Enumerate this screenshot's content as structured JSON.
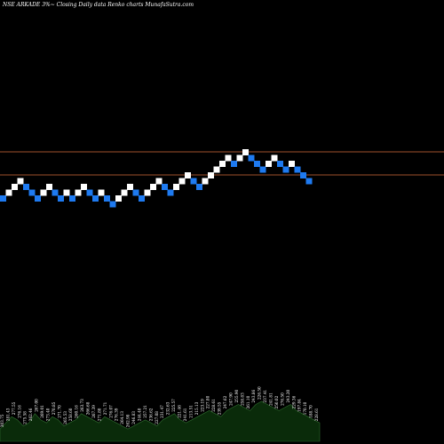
{
  "header": {
    "symbol_text": "NSE ARKADE",
    "pct_text": "3%",
    "arrow_text": "~",
    "description": "Closing Daily data  Renko  charts MunafaSutra.com"
  },
  "colors": {
    "background": "#000000",
    "up_brick": "#ffffff",
    "down_brick": "#1e7af0",
    "support_line": "#a0522d",
    "volume_fill": "#0a2b0a",
    "volume_edge": "#2f6b2f",
    "label_text": "#ffffff"
  },
  "chart_data": {
    "type": "renko",
    "basis": "Closing Daily",
    "levels": [
      {
        "name": "upper",
        "value": 8
      },
      {
        "name": "lower",
        "value": 4
      }
    ],
    "bricks": [
      {
        "dir": "down",
        "level": 0
      },
      {
        "dir": "up",
        "level": 1
      },
      {
        "dir": "up",
        "level": 2
      },
      {
        "dir": "up",
        "level": 3
      },
      {
        "dir": "down",
        "level": 2
      },
      {
        "dir": "down",
        "level": 1
      },
      {
        "dir": "down",
        "level": 0
      },
      {
        "dir": "up",
        "level": 1
      },
      {
        "dir": "up",
        "level": 2
      },
      {
        "dir": "down",
        "level": 1
      },
      {
        "dir": "down",
        "level": 0
      },
      {
        "dir": "up",
        "level": 1
      },
      {
        "dir": "down",
        "level": 0
      },
      {
        "dir": "up",
        "level": 1
      },
      {
        "dir": "up",
        "level": 2
      },
      {
        "dir": "down",
        "level": 1
      },
      {
        "dir": "down",
        "level": 0
      },
      {
        "dir": "up",
        "level": 1
      },
      {
        "dir": "down",
        "level": 0
      },
      {
        "dir": "down",
        "level": -1
      },
      {
        "dir": "up",
        "level": 0
      },
      {
        "dir": "up",
        "level": 1
      },
      {
        "dir": "up",
        "level": 2
      },
      {
        "dir": "down",
        "level": 1
      },
      {
        "dir": "down",
        "level": 0
      },
      {
        "dir": "up",
        "level": 1
      },
      {
        "dir": "up",
        "level": 2
      },
      {
        "dir": "up",
        "level": 3
      },
      {
        "dir": "down",
        "level": 2
      },
      {
        "dir": "down",
        "level": 1
      },
      {
        "dir": "up",
        "level": 2
      },
      {
        "dir": "up",
        "level": 3
      },
      {
        "dir": "up",
        "level": 4
      },
      {
        "dir": "down",
        "level": 3
      },
      {
        "dir": "down",
        "level": 2
      },
      {
        "dir": "up",
        "level": 3
      },
      {
        "dir": "up",
        "level": 4
      },
      {
        "dir": "up",
        "level": 5
      },
      {
        "dir": "up",
        "level": 6
      },
      {
        "dir": "up",
        "level": 7
      },
      {
        "dir": "down",
        "level": 6
      },
      {
        "dir": "up",
        "level": 7
      },
      {
        "dir": "up",
        "level": 8
      },
      {
        "dir": "down",
        "level": 7
      },
      {
        "dir": "down",
        "level": 6
      },
      {
        "dir": "down",
        "level": 5
      },
      {
        "dir": "up",
        "level": 6
      },
      {
        "dir": "up",
        "level": 7
      },
      {
        "dir": "down",
        "level": 6
      },
      {
        "dir": "down",
        "level": 5
      },
      {
        "dir": "up",
        "level": 6
      },
      {
        "dir": "down",
        "level": 5
      },
      {
        "dir": "down",
        "level": 4
      },
      {
        "dir": "down",
        "level": 3
      }
    ],
    "volume_labels": [
      "303.75",
      "281.43",
      "277.55",
      "276.16",
      "275.58",
      "262.46",
      "267.00",
      "269.01",
      "273.40",
      "270.85",
      "271.70",
      "265.53",
      "258.60",
      "260.16",
      "263.73",
      "266.68",
      "267.39",
      "271.80",
      "271.71",
      "276.07",
      "276.39",
      "264.13",
      "262.98",
      "246.83",
      "244.40",
      "257.21",
      "236.62",
      "227.08",
      "231.47",
      "232.63",
      "225.57",
      "221.46",
      "241.61",
      "213.51",
      "215.13",
      "223.19",
      "227.80",
      "228.61",
      "239.55",
      "247.62",
      "247.90",
      "255.90",
      "258.83",
      "261.10",
      "243.86",
      "226.50",
      "237.41",
      "241.81",
      "250.02",
      "276.50",
      "243.20",
      "229.36",
      "197.84",
      "170.10",
      "188.70",
      "228.61"
    ],
    "volumes": [
      4,
      6,
      8,
      7,
      5,
      6,
      9,
      7,
      6,
      8,
      7,
      5,
      6,
      7,
      9,
      8,
      7,
      6,
      8,
      7,
      6,
      5,
      4,
      5,
      6,
      7,
      6,
      5,
      7,
      8,
      9,
      7,
      6,
      7,
      8,
      9,
      10,
      9,
      8,
      10,
      11,
      12,
      11,
      10,
      12,
      13,
      12,
      11,
      10,
      11,
      12,
      10,
      9,
      8,
      7,
      6
    ]
  }
}
